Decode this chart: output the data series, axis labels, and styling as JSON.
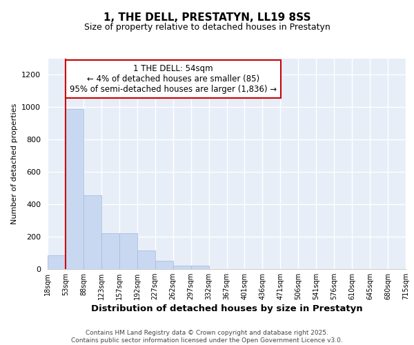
{
  "title": "1, THE DELL, PRESTATYN, LL19 8SS",
  "subtitle": "Size of property relative to detached houses in Prestatyn",
  "xlabel": "Distribution of detached houses by size in Prestatyn",
  "ylabel": "Number of detached properties",
  "bar_values": [
    85,
    990,
    455,
    220,
    220,
    115,
    50,
    20,
    20,
    0,
    0,
    0,
    0,
    0,
    0,
    0,
    0,
    0,
    0,
    0
  ],
  "categories": [
    "18sqm",
    "53sqm",
    "88sqm",
    "123sqm",
    "157sqm",
    "192sqm",
    "227sqm",
    "262sqm",
    "297sqm",
    "332sqm",
    "367sqm",
    "401sqm",
    "436sqm",
    "471sqm",
    "506sqm",
    "541sqm",
    "576sqm",
    "610sqm",
    "645sqm",
    "680sqm",
    "715sqm"
  ],
  "bar_color": "#c8d8f0",
  "bar_edge_color": "#a0b8e0",
  "annotation_text": "1 THE DELL: 54sqm\n← 4% of detached houses are smaller (85)\n95% of semi-detached houses are larger (1,836) →",
  "annotation_box_facecolor": "#ffffff",
  "annotation_box_edgecolor": "#cc0000",
  "vline_color": "#cc0000",
  "vline_x": 1,
  "ylim": [
    0,
    1300
  ],
  "yticks": [
    0,
    200,
    400,
    600,
    800,
    1000,
    1200
  ],
  "plot_bg": "#e8eef8",
  "fig_bg": "#ffffff",
  "footer_line1": "Contains HM Land Registry data © Crown copyright and database right 2025.",
  "footer_line2": "Contains public sector information licensed under the Open Government Licence v3.0.",
  "grid_color": "#ffffff"
}
